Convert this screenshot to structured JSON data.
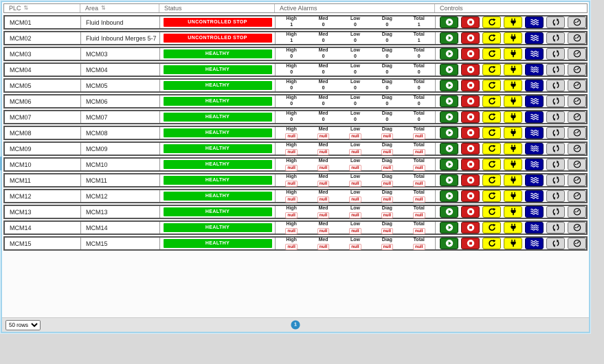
{
  "table": {
    "columns": [
      {
        "label": "PLC",
        "sortable": true
      },
      {
        "label": "Area",
        "sortable": true
      },
      {
        "label": "Status",
        "sortable": false
      },
      {
        "label": "Active Alarms",
        "sortable": false
      },
      {
        "label": "Controls",
        "sortable": false
      }
    ],
    "alarm_labels": [
      "High",
      "Med",
      "Low",
      "Diag",
      "Total"
    ],
    "control_buttons": [
      {
        "name": "start-button",
        "icon": "play-circle-icon",
        "bg": "#1b7e1b"
      },
      {
        "name": "stop-button",
        "icon": "stop-circle-icon",
        "bg": "#cf1d1d"
      },
      {
        "name": "restart-button",
        "icon": "redo-icon",
        "bg": "#ffff00"
      },
      {
        "name": "power-button",
        "icon": "plug-icon",
        "bg": "#ffff00"
      },
      {
        "name": "flush-button",
        "icon": "waves-icon",
        "bg": "#000099"
      },
      {
        "name": "sync-button",
        "icon": "sync-icon",
        "bg": "#d8d8d8"
      },
      {
        "name": "gauge-button",
        "icon": "gauge-icon",
        "bg": "#d8d8d8"
      }
    ],
    "rows": [
      {
        "plc": "MCM01",
        "area": "Fluid Inbound",
        "status": "UNCONTROLLED STOP",
        "status_type": "stopped",
        "alarms": [
          "1",
          "0",
          "0",
          "0",
          "1"
        ]
      },
      {
        "plc": "MCM02",
        "area": "Fluid Inbound Merges 5-7",
        "status": "UNCONTROLLED STOP",
        "status_type": "stopped",
        "alarms": [
          "1",
          "0",
          "0",
          "0",
          "1"
        ]
      },
      {
        "plc": "MCM03",
        "area": "MCM03",
        "status": "HEALTHY",
        "status_type": "healthy",
        "alarms": [
          "0",
          "0",
          "0",
          "0",
          "0"
        ]
      },
      {
        "plc": "MCM04",
        "area": "MCM04",
        "status": "HEALTHY",
        "status_type": "healthy",
        "alarms": [
          "0",
          "0",
          "0",
          "0",
          "0"
        ]
      },
      {
        "plc": "MCM05",
        "area": "MCM05",
        "status": "HEALTHY",
        "status_type": "healthy",
        "alarms": [
          "0",
          "0",
          "0",
          "0",
          "0"
        ]
      },
      {
        "plc": "MCM06",
        "area": "MCM06",
        "status": "HEALTHY",
        "status_type": "healthy",
        "alarms": [
          "0",
          "0",
          "0",
          "0",
          "0"
        ]
      },
      {
        "plc": "MCM07",
        "area": "MCM07",
        "status": "HEALTHY",
        "status_type": "healthy",
        "alarms": [
          "0",
          "0",
          "0",
          "0",
          "0"
        ]
      },
      {
        "plc": "MCM08",
        "area": "MCM08",
        "status": "HEALTHY",
        "status_type": "healthy",
        "alarms": [
          "null",
          "null",
          "null",
          "null",
          "null"
        ]
      },
      {
        "plc": "MCM09",
        "area": "MCM09",
        "status": "HEALTHY",
        "status_type": "healthy",
        "alarms": [
          "null",
          "null",
          "null",
          "null",
          "null"
        ]
      },
      {
        "plc": "MCM10",
        "area": "MCM10",
        "status": "HEALTHY",
        "status_type": "healthy",
        "alarms": [
          "null",
          "null",
          "null",
          "null",
          "null"
        ]
      },
      {
        "plc": "MCM11",
        "area": "MCM11",
        "status": "HEALTHY",
        "status_type": "healthy",
        "alarms": [
          "null",
          "null",
          "null",
          "null",
          "null"
        ]
      },
      {
        "plc": "MCM12",
        "area": "MCM12",
        "status": "HEALTHY",
        "status_type": "healthy",
        "alarms": [
          "null",
          "null",
          "null",
          "null",
          "null"
        ]
      },
      {
        "plc": "MCM13",
        "area": "MCM13",
        "status": "HEALTHY",
        "status_type": "healthy",
        "alarms": [
          "null",
          "null",
          "null",
          "null",
          "null"
        ]
      },
      {
        "plc": "MCM14",
        "area": "MCM14",
        "status": "HEALTHY",
        "status_type": "healthy",
        "alarms": [
          "null",
          "null",
          "null",
          "null",
          "null"
        ]
      },
      {
        "plc": "MCM15",
        "area": "MCM15",
        "status": "HEALTHY",
        "status_type": "healthy",
        "alarms": [
          "null",
          "null",
          "null",
          "null",
          "null"
        ]
      }
    ]
  },
  "icons": {
    "sort": "⇅"
  },
  "footer": {
    "rows_per_page": "50 rows",
    "page": "1"
  },
  "colors": {
    "status_stopped": "#ff0000",
    "status_healthy": "#00c300",
    "null_value": "#c40000",
    "pagination": "#2a8bc5",
    "container_border": "#a2d4ec"
  }
}
